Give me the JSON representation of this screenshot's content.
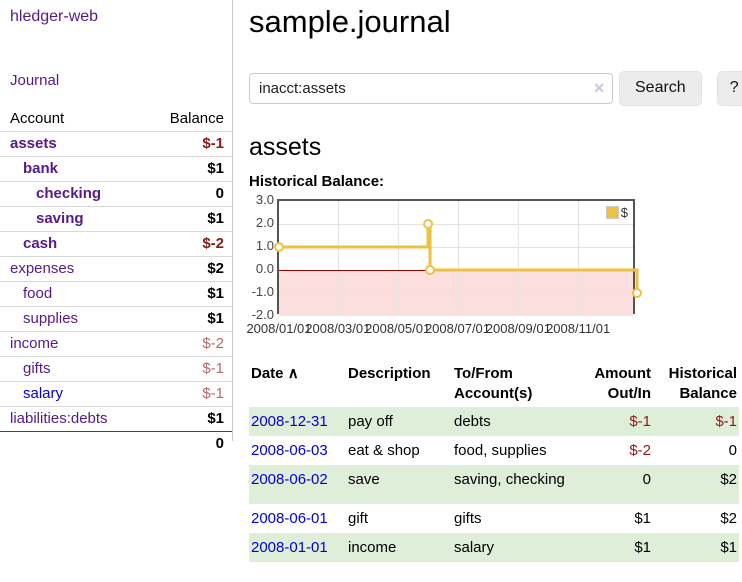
{
  "brand": "hledger-web",
  "nav": {
    "journal_label": "Journal"
  },
  "sidebar": {
    "headers": {
      "account": "Account",
      "balance": "Balance"
    },
    "rows": [
      {
        "name": "assets",
        "indent": 0,
        "bold": true,
        "balance": "$-1",
        "neg": "strong"
      },
      {
        "name": "bank",
        "indent": 1,
        "bold": true,
        "balance": "$1"
      },
      {
        "name": "checking",
        "indent": 2,
        "bold": true,
        "balance": "0"
      },
      {
        "name": "saving",
        "indent": 2,
        "bold": true,
        "balance": "$1"
      },
      {
        "name": "cash",
        "indent": 1,
        "bold": true,
        "balance": "$-2",
        "neg": "strong"
      },
      {
        "name": "expenses",
        "indent": 0,
        "bold": false,
        "balance": "$2"
      },
      {
        "name": "food",
        "indent": 1,
        "bold": false,
        "balance": "$1"
      },
      {
        "name": "supplies",
        "indent": 1,
        "bold": false,
        "balance": "$1"
      },
      {
        "name": "income",
        "indent": 0,
        "bold": false,
        "balance": "$-2",
        "neg": "soft"
      },
      {
        "name": "gifts",
        "indent": 1,
        "bold": false,
        "balance": "$-1",
        "neg": "soft"
      },
      {
        "name": "salary",
        "indent": 1,
        "bold": false,
        "balance": "$-1",
        "neg": "soft",
        "blue": true
      },
      {
        "name": "liabilities:debts",
        "indent": 0,
        "bold": false,
        "balance": "$1",
        "last": true
      }
    ],
    "total": "0"
  },
  "page": {
    "title": "sample.journal",
    "account_heading": "assets",
    "chart_label": "Historical Balance:"
  },
  "search": {
    "value": "inacct:assets",
    "clear_icon": "✕",
    "button_label": "Search",
    "help_label": "?"
  },
  "chart_data": {
    "type": "line",
    "step": true,
    "title": "Historical Balance",
    "series": [
      {
        "name": "$",
        "color": "#edc240",
        "points": [
          [
            "2008-01-01",
            1
          ],
          [
            "2008-06-01",
            2
          ],
          [
            "2008-06-03",
            0
          ],
          [
            "2008-12-31",
            -1
          ]
        ]
      }
    ],
    "x_ticks": [
      "2008/01/01",
      "2008/03/01",
      "2008/05/01",
      "2008/07/01",
      "2008/09/01",
      "2008/11/01"
    ],
    "y_ticks": [
      3.0,
      2.0,
      1.0,
      0.0,
      -1.0,
      -2.0
    ],
    "ylim": [
      -2,
      3
    ],
    "xlim": [
      "2008-01-01",
      "2008-12-31"
    ],
    "grid": true,
    "legend": {
      "position": "top-right",
      "label": "$",
      "swatch_color": "#edc240"
    },
    "negative_region_color": "#fbdede",
    "zero_line_color": "#8b0000"
  },
  "register": {
    "headers": {
      "date": "Date",
      "description": "Description",
      "accounts": "To/From Account(s)",
      "amount": "Amount Out/In",
      "balance": "Historical Balance"
    },
    "sort_icon": "∧",
    "rows": [
      {
        "date": "2008-12-31",
        "description": "pay off",
        "accounts": "debts",
        "amount": "$-1",
        "balance": "$-1"
      },
      {
        "date": "2008-06-03",
        "description": "eat & shop",
        "accounts": "food, supplies",
        "amount": "$-2",
        "balance": "0"
      },
      {
        "date": "2008-06-02",
        "description": "save",
        "accounts": "saving, checking",
        "amount": "0",
        "balance": "$2",
        "tall": true
      },
      {
        "date": "2008-06-01",
        "description": "gift",
        "accounts": "gifts",
        "amount": "$1",
        "balance": "$2"
      },
      {
        "date": "2008-01-01",
        "description": "income",
        "accounts": "salary",
        "amount": "$1",
        "balance": "$1"
      }
    ]
  },
  "colors": {
    "link_purple": "#551a8b",
    "link_blue": "#0000dd",
    "negative_strong": "#8b1a14",
    "negative_soft": "#b36b6b",
    "stripe_green": "#dfeed8",
    "series_yellow": "#edc240",
    "zero_line_red": "#8b0000",
    "negative_region_pink": "#fbdede",
    "button_gray": "#ececec"
  }
}
